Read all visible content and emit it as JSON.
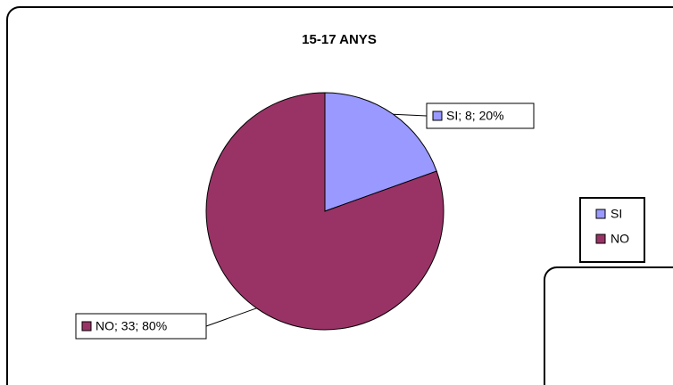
{
  "chart_data": {
    "type": "pie",
    "title": "15-17 ANYS",
    "categories": [
      "SI",
      "NO"
    ],
    "values": [
      8,
      33
    ],
    "value_labels": [
      "SI; 8; 20%",
      "NO; 33; 80%"
    ],
    "colors": [
      "#9999ff",
      "#993366"
    ],
    "legend": "right"
  }
}
